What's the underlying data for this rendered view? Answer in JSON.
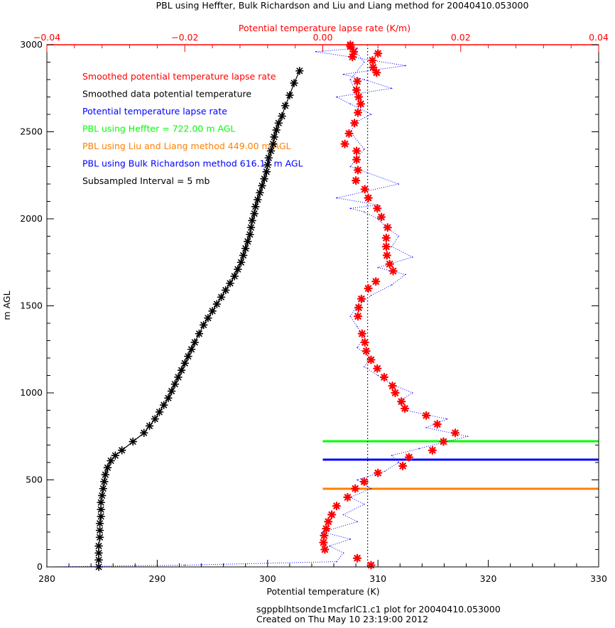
{
  "chart_data": {
    "type": "scatter",
    "title": "PBL using Heffter, Bulk Richardson and Liu and Liang method for 20040410.053000",
    "xlabel": "Potential temperature (K)",
    "x2label": "Potential temperature lapse rate (K/m)",
    "ylabel": "m AGL",
    "xlim": [
      280,
      330
    ],
    "x2lim": [
      -0.04,
      0.04
    ],
    "ylim": [
      0,
      3000
    ],
    "x_ticks": [
      "280",
      "290",
      "300",
      "310",
      "320",
      "330"
    ],
    "x2_ticks": [
      "−0.04",
      "−0.02",
      "0.00",
      "0.02",
      "0.04"
    ],
    "y_ticks": [
      "0",
      "500",
      "1000",
      "1500",
      "2000",
      "2500",
      "3000"
    ],
    "grid": false,
    "legend": [
      {
        "text": "Smoothed potential temperature lapse rate",
        "color": "#ff0000"
      },
      {
        "text": "Smoothed data potential temperature",
        "color": "#000000"
      },
      {
        "text": "Potential temperature lapse rate",
        "color": "#0000ff"
      },
      {
        "text": "PBL using Heffter =    722.00 m AGL",
        "color": "#00ff00"
      },
      {
        "text": "PBL using Liu and Liang method   449.00 m AGL",
        "color": "#ff8000"
      },
      {
        "text": "PBL using Bulk Richardson method   616.17 m AGL",
        "color": "#0000ff"
      },
      {
        "text": "Subsampled Interval = 5 mb",
        "color": "#000000"
      }
    ],
    "footer": [
      "sgppblhtsonde1mcfarlC1.c1 plot  for 20040410.053000",
      "Created on Thu May 10 23:19:00 2012"
    ],
    "pbl_lines": [
      {
        "name": "Heffter",
        "height": 722.0,
        "color": "#00ff00"
      },
      {
        "name": "Bulk Richardson",
        "height": 616.17,
        "color": "#0000ff"
      },
      {
        "name": "Liu and Liang",
        "height": 449.0,
        "color": "#ff8000"
      }
    ],
    "reference_lapse_rate": 0.0065,
    "series": [
      {
        "name": "Smoothed data potential temperature",
        "axis": "bottom",
        "color": "#000000",
        "marker": "asterisk",
        "x": [
          284.7,
          284.7,
          284.7,
          284.7,
          284.8,
          284.8,
          284.8,
          284.9,
          284.9,
          284.9,
          285.0,
          285.1,
          285.2,
          285.3,
          285.5,
          285.8,
          286.2,
          286.8,
          287.8,
          288.8,
          289.3,
          289.8,
          290.2,
          290.6,
          291.0,
          291.3,
          291.6,
          291.9,
          292.2,
          292.5,
          292.8,
          293.1,
          293.4,
          293.8,
          294.2,
          294.6,
          295.0,
          295.4,
          295.8,
          296.2,
          296.6,
          297.0,
          297.3,
          297.6,
          297.8,
          298.0,
          298.2,
          298.4,
          298.5,
          298.6,
          298.8,
          298.9,
          299.1,
          299.3,
          299.5,
          299.7,
          299.9,
          300.0,
          300.1,
          300.3,
          300.5,
          300.6,
          300.8,
          301.0,
          301.3,
          301.6,
          302.0,
          302.4,
          302.9
        ],
        "y": [
          0,
          40,
          80,
          120,
          170,
          210,
          250,
          290,
          330,
          370,
          410,
          450,
          490,
          530,
          570,
          610,
          640,
          670,
          720,
          770,
          810,
          850,
          890,
          930,
          970,
          1010,
          1050,
          1090,
          1130,
          1170,
          1210,
          1250,
          1290,
          1340,
          1390,
          1430,
          1470,
          1510,
          1550,
          1590,
          1630,
          1670,
          1710,
          1750,
          1790,
          1830,
          1870,
          1910,
          1950,
          1990,
          2030,
          2070,
          2110,
          2150,
          2190,
          2230,
          2270,
          2310,
          2350,
          2390,
          2430,
          2470,
          2510,
          2550,
          2590,
          2650,
          2710,
          2780,
          2850
        ]
      },
      {
        "name": "Smoothed potential temperature lapse rate",
        "axis": "top",
        "color": "#ff0000",
        "marker": "asterisk",
        "x": [
          0.007,
          0.005,
          0.0003,
          0.0001,
          0.0002,
          0.0005,
          0.0008,
          0.0013,
          0.002,
          0.0036,
          0.0047,
          0.006,
          0.008,
          0.0116,
          0.0125,
          0.0159,
          0.0175,
          0.0192,
          0.0166,
          0.015,
          0.0119,
          0.0114,
          0.0105,
          0.0101,
          0.0089,
          0.0079,
          0.007,
          0.0063,
          0.0061,
          0.0057,
          0.0051,
          0.0052,
          0.0056,
          0.0066,
          0.0077,
          0.0102,
          0.0097,
          0.0093,
          0.0092,
          0.0092,
          0.0094,
          0.0085,
          0.0079,
          0.0066,
          0.0061,
          0.0048,
          0.0051,
          0.0049,
          0.0049,
          0.0032,
          0.0038,
          0.0046,
          0.0051,
          0.0055,
          0.0052,
          0.0049,
          0.005,
          0.0078,
          0.0073,
          0.0072,
          0.008,
          0.004,
          0.004,
          0.0045,
          0.0043
        ],
        "y": [
          10,
          50,
          100,
          140,
          180,
          220,
          260,
          300,
          350,
          400,
          450,
          490,
          540,
          580,
          630,
          670,
          720,
          770,
          820,
          870,
          910,
          950,
          1000,
          1040,
          1090,
          1140,
          1190,
          1240,
          1290,
          1340,
          1440,
          1490,
          1540,
          1600,
          1640,
          1700,
          1740,
          1790,
          1840,
          1890,
          1950,
          2010,
          2060,
          2120,
          2170,
          2220,
          2280,
          2340,
          2390,
          2430,
          2490,
          2550,
          2610,
          2660,
          2700,
          2740,
          2790,
          2840,
          2870,
          2910,
          2950,
          2990,
          3000,
          2960,
          2930
        ]
      },
      {
        "name": "Potential temperature lapse rate",
        "axis": "top",
        "color": "#0000ff",
        "line": "dotted",
        "x": [
          -0.04,
          -0.02,
          0.002,
          0.003,
          0.001,
          0.004,
          0.0,
          0.005,
          0.003,
          0.006,
          0.004,
          0.007,
          0.005,
          0.009,
          0.011,
          0.01,
          0.014,
          0.018,
          0.021,
          0.015,
          0.018,
          0.012,
          0.011,
          0.013,
          0.01,
          0.008,
          0.006,
          0.007,
          0.005,
          0.006,
          0.005,
          0.004,
          0.005,
          0.007,
          0.01,
          0.012,
          0.008,
          0.013,
          0.01,
          0.011,
          0.009,
          0.008,
          0.006,
          0.004,
          0.008,
          0.002,
          0.011,
          0.004,
          0.006,
          0.004,
          0.005,
          0.007,
          0.004,
          0.002,
          0.01,
          0.006,
          0.003,
          0.012,
          0.004,
          -0.001,
          0.005,
          0.004,
          0.006,
          0.004,
          0.005
        ],
        "y": [
          0,
          10,
          30,
          80,
          120,
          160,
          200,
          260,
          300,
          360,
          400,
          450,
          500,
          550,
          600,
          640,
          680,
          720,
          750,
          800,
          850,
          900,
          950,
          1000,
          1050,
          1100,
          1150,
          1200,
          1260,
          1320,
          1380,
          1440,
          1500,
          1560,
          1620,
          1680,
          1720,
          1780,
          1840,
          1900,
          1960,
          2000,
          2040,
          2060,
          2080,
          2120,
          2200,
          2300,
          2400,
          2500,
          2560,
          2600,
          2660,
          2700,
          2750,
          2800,
          2830,
          2880,
          2930,
          2960,
          2980,
          3000,
          2900,
          2800,
          2700
        ]
      }
    ]
  }
}
